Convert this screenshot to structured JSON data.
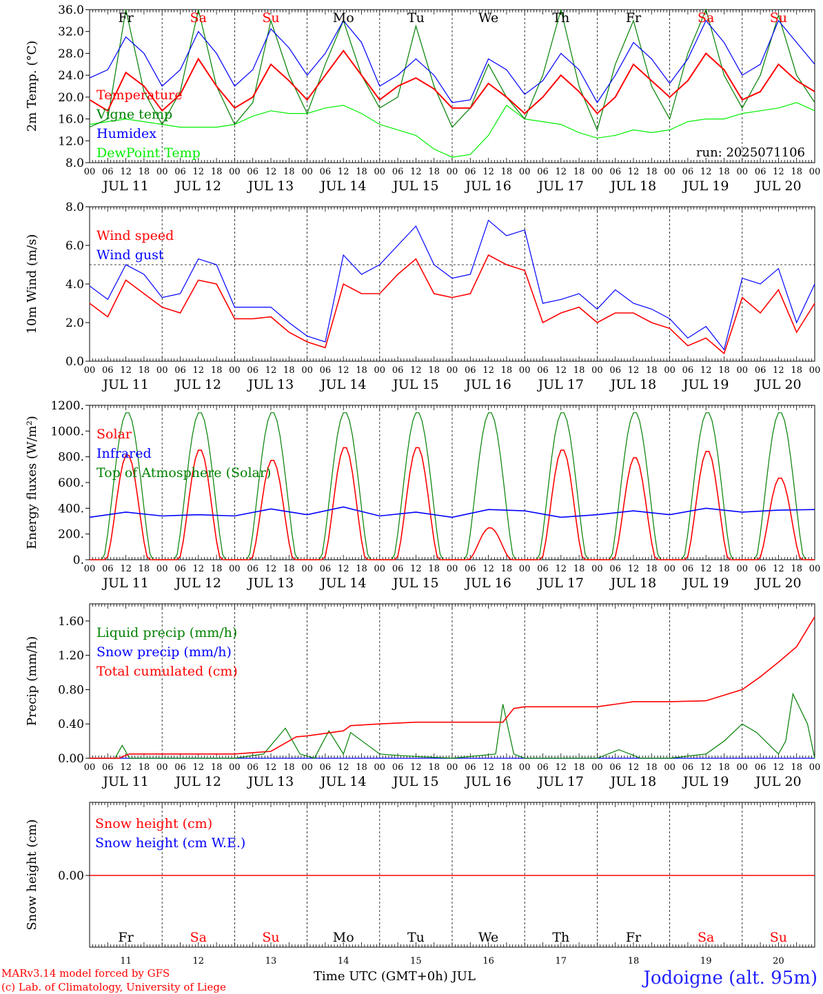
{
  "chart_data": [
    {
      "type": "line",
      "ylabel": "2m Temp. (°C)",
      "ylim": [
        8,
        36
      ],
      "yticks": [
        "36.0",
        "32.0",
        "28.0",
        "24.0",
        "20.0",
        "16.0",
        "12.0",
        "8.0"
      ],
      "annotation": "run: 2025071106",
      "legend": [
        {
          "label": "Temperature",
          "color": "#ff0000"
        },
        {
          "label": "Vigne temp",
          "color": "#008000"
        },
        {
          "label": "Humidex",
          "color": "#0000ff"
        },
        {
          "label": "DewPoint Temp",
          "color": "#00ee00"
        }
      ],
      "series": [
        {
          "name": "Temperature",
          "color": "#ff0000",
          "x": [
            0,
            0.25,
            0.5,
            0.75,
            1,
            1.25,
            1.5,
            1.75,
            2,
            2.25,
            2.5,
            2.75,
            3,
            3.25,
            3.5,
            3.75,
            4,
            4.25,
            4.5,
            4.75,
            5,
            5.25,
            5.5,
            5.75,
            6,
            6.25,
            6.5,
            6.75,
            7,
            7.25,
            7.5,
            7.75,
            8,
            8.25,
            8.5,
            8.75,
            9,
            9.25,
            9.5,
            9.75,
            10
          ],
          "values": [
            19.5,
            17.5,
            24.5,
            22,
            17.5,
            20.5,
            27,
            22,
            18,
            20,
            26,
            23,
            19.5,
            24,
            28.5,
            24,
            19.5,
            22,
            23.5,
            21.5,
            18,
            18,
            22.5,
            20,
            17,
            20,
            24,
            21,
            17,
            20,
            26,
            23,
            20,
            23,
            28,
            25,
            19.5,
            21,
            26,
            23,
            21
          ]
        },
        {
          "name": "Vigne temp",
          "color": "#008000",
          "x": [
            0,
            0.25,
            0.5,
            0.75,
            1,
            1.25,
            1.5,
            1.75,
            2,
            2.25,
            2.5,
            2.75,
            3,
            3.25,
            3.5,
            3.75,
            4,
            4.25,
            4.5,
            4.75,
            5,
            5.25,
            5.5,
            5.75,
            6,
            6.25,
            6.5,
            6.75,
            7,
            7.25,
            7.5,
            7.75,
            8,
            8.25,
            8.5,
            8.75,
            9,
            9.25,
            9.5,
            9.75,
            10
          ],
          "values": [
            14.5,
            16,
            36,
            21,
            15,
            21,
            36,
            22,
            15,
            19,
            34,
            24,
            17,
            26,
            34,
            24,
            18,
            20,
            33,
            22,
            14.5,
            18,
            26,
            20,
            16,
            24,
            36,
            22,
            14,
            26,
            34,
            22,
            16,
            28,
            36,
            24,
            18,
            24,
            35,
            24,
            19
          ]
        },
        {
          "name": "Humidex",
          "color": "#0000ff",
          "x": [
            0,
            0.25,
            0.5,
            0.75,
            1,
            1.25,
            1.5,
            1.75,
            2,
            2.25,
            2.5,
            2.75,
            3,
            3.25,
            3.5,
            3.75,
            4,
            4.25,
            4.5,
            4.75,
            5,
            5.25,
            5.5,
            5.75,
            6,
            6.25,
            6.5,
            6.75,
            7,
            7.25,
            7.5,
            7.75,
            8,
            8.25,
            8.5,
            8.75,
            9,
            9.25,
            9.5,
            9.75,
            10
          ],
          "values": [
            23.5,
            25,
            31,
            28,
            22,
            25,
            32,
            28,
            22,
            25,
            32.5,
            29,
            24,
            28,
            34,
            30,
            22,
            24,
            27,
            24,
            19,
            19.5,
            27,
            25,
            20.5,
            23,
            28,
            25,
            19,
            24,
            30,
            27,
            22.5,
            27,
            34,
            30,
            24,
            26,
            34,
            30,
            26
          ]
        },
        {
          "name": "DewPoint Temp",
          "color": "#00ee00",
          "x": [
            0,
            0.25,
            0.5,
            0.75,
            1,
            1.25,
            1.5,
            1.75,
            2,
            2.25,
            2.5,
            2.75,
            3,
            3.25,
            3.5,
            3.75,
            4,
            4.25,
            4.5,
            4.75,
            5,
            5.25,
            5.5,
            5.75,
            6,
            6.25,
            6.5,
            6.75,
            7,
            7.25,
            7.5,
            7.75,
            8,
            8.25,
            8.5,
            8.75,
            9,
            9.25,
            9.5,
            9.75,
            10
          ],
          "values": [
            15,
            15.5,
            16,
            15.5,
            15,
            14.5,
            14.5,
            14.5,
            15,
            16.5,
            17.5,
            17,
            17,
            18,
            18.5,
            17,
            15,
            14,
            13,
            10.5,
            9,
            9.5,
            13,
            18.5,
            16,
            15.5,
            15,
            13.5,
            12.5,
            13,
            14,
            13.5,
            14,
            15.5,
            16,
            16,
            17,
            17.5,
            18,
            19,
            17.5
          ]
        }
      ]
    },
    {
      "type": "line",
      "ylabel": "10m Wind (m/s)",
      "ylim": [
        0,
        8
      ],
      "yticks": [
        "8.0",
        "6.0",
        "4.0",
        "2.0",
        "0.0"
      ],
      "reference_line": 5,
      "legend": [
        {
          "label": "Wind speed",
          "color": "#ff0000"
        },
        {
          "label": "Wind gust",
          "color": "#0000ff"
        }
      ],
      "series": [
        {
          "name": "Wind speed",
          "color": "#ff0000",
          "x": [
            0,
            0.25,
            0.5,
            0.75,
            1,
            1.25,
            1.5,
            1.75,
            2,
            2.25,
            2.5,
            2.75,
            3,
            3.25,
            3.5,
            3.75,
            4,
            4.25,
            4.5,
            4.75,
            5,
            5.25,
            5.5,
            5.75,
            6,
            6.25,
            6.5,
            6.75,
            7,
            7.25,
            7.5,
            7.75,
            8,
            8.25,
            8.5,
            8.75,
            9,
            9.25,
            9.5,
            9.75,
            10
          ],
          "values": [
            3,
            2.3,
            4.2,
            3.5,
            2.8,
            2.5,
            4.2,
            4,
            2.2,
            2.2,
            2.3,
            1.5,
            1,
            0.7,
            4,
            3.5,
            3.5,
            4.5,
            5.3,
            3.5,
            3.3,
            3.5,
            5.5,
            5,
            4.7,
            2,
            2.5,
            2.8,
            2,
            2.5,
            2.5,
            2,
            1.7,
            0.8,
            1.2,
            0.4,
            3.3,
            2.5,
            3.7,
            1.5,
            3
          ]
        },
        {
          "name": "Wind gust",
          "color": "#0000ff",
          "x": [
            0,
            0.25,
            0.5,
            0.75,
            1,
            1.25,
            1.5,
            1.75,
            2,
            2.25,
            2.5,
            2.75,
            3,
            3.25,
            3.5,
            3.75,
            4,
            4.25,
            4.5,
            4.75,
            5,
            5.25,
            5.5,
            5.75,
            6,
            6.25,
            6.5,
            6.75,
            7,
            7.25,
            7.5,
            7.75,
            8,
            8.25,
            8.5,
            8.75,
            9,
            9.25,
            9.5,
            9.75,
            10
          ],
          "values": [
            3.9,
            3.2,
            5,
            4.5,
            3.3,
            3.5,
            5.3,
            5,
            2.8,
            2.8,
            2.8,
            2,
            1.3,
            1,
            5.5,
            4.5,
            5,
            6,
            7,
            5,
            4.3,
            4.5,
            7.3,
            6.5,
            6.8,
            3,
            3.2,
            3.5,
            2.7,
            3.7,
            3,
            2.7,
            2.2,
            1.2,
            1.8,
            0.6,
            4.3,
            4,
            4.8,
            2,
            4
          ]
        }
      ]
    },
    {
      "type": "line",
      "ylabel": "Energy fluxes (W/m²)",
      "ylim": [
        0,
        1200
      ],
      "yticks": [
        "1200.",
        "1000.",
        "800.",
        "600.",
        "400.",
        "200.",
        "0."
      ],
      "legend": [
        {
          "label": "Solar",
          "color": "#ff0000"
        },
        {
          "label": "Infrared",
          "color": "#0000ff"
        },
        {
          "label": "Top of Atmosphere (Solar)",
          "color": "#008000"
        }
      ],
      "toa_peak": 1150,
      "solar_peaks": [
        820,
        860,
        780,
        880,
        880,
        250,
        860,
        800,
        850,
        640
      ],
      "infrared": {
        "x": [
          0,
          0.5,
          1,
          1.5,
          2,
          2.5,
          3,
          3.5,
          4,
          4.5,
          5,
          5.5,
          6,
          6.5,
          7,
          7.5,
          8,
          8.5,
          9,
          9.5,
          10
        ],
        "values": [
          330,
          370,
          340,
          350,
          340,
          395,
          350,
          410,
          340,
          370,
          330,
          390,
          380,
          330,
          350,
          380,
          350,
          400,
          370,
          385,
          390
        ]
      }
    },
    {
      "type": "line",
      "ylabel": "Precip (mm/h)",
      "ylim": [
        0,
        1.8
      ],
      "yticks": [
        "1.60",
        "1.20",
        "0.80",
        "0.40",
        "0.00"
      ],
      "legend": [
        {
          "label": "Liquid precip (mm/h)",
          "color": "#008000"
        },
        {
          "label": "Snow precip (mm/h)",
          "color": "#0000ff"
        },
        {
          "label": "Total cumulated (cm)",
          "color": "#ff0000"
        }
      ],
      "series": [
        {
          "name": "Total cumulated (cm)",
          "color": "#ff0000",
          "x": [
            0,
            0.4,
            0.55,
            1,
            2,
            2.5,
            2.85,
            3,
            3.5,
            3.6,
            4,
            4.5,
            5,
            5.7,
            5.85,
            6,
            7,
            7.5,
            8,
            8.5,
            9,
            9.25,
            9.5,
            9.75,
            10
          ],
          "values": [
            0,
            0,
            0.05,
            0.05,
            0.05,
            0.08,
            0.25,
            0.26,
            0.32,
            0.38,
            0.4,
            0.42,
            0.42,
            0.42,
            0.58,
            0.6,
            0.6,
            0.66,
            0.66,
            0.67,
            0.8,
            0.95,
            1.12,
            1.3,
            1.65
          ]
        },
        {
          "name": "Liquid precip (mm/h)",
          "color": "#008000",
          "x": [
            0,
            0.35,
            0.45,
            0.55,
            1,
            2,
            2.4,
            2.7,
            2.9,
            3.1,
            3.3,
            3.5,
            3.6,
            4,
            4.3,
            5,
            5.6,
            5.7,
            5.85,
            6,
            7,
            7.3,
            7.6,
            8,
            8.5,
            8.75,
            9,
            9.2,
            9.5,
            9.6,
            9.7,
            9.9,
            10
          ],
          "values": [
            0,
            0,
            0.15,
            0,
            0,
            0,
            0.05,
            0.35,
            0.05,
            0,
            0.32,
            0.05,
            0.3,
            0.05,
            0.03,
            0,
            0.05,
            0.63,
            0.05,
            0,
            0,
            0.1,
            0,
            0,
            0.05,
            0.2,
            0.4,
            0.3,
            0.05,
            0.2,
            0.75,
            0.4,
            0
          ]
        },
        {
          "name": "Snow precip (mm/h)",
          "color": "#0000ff",
          "x": [
            0,
            10
          ],
          "values": [
            0,
            0
          ]
        }
      ]
    },
    {
      "type": "line",
      "ylabel": "Snow height (cm)",
      "yticks": [
        "0.00"
      ],
      "legend": [
        {
          "label": "Snow height (cm)",
          "color": "#ff0000"
        },
        {
          "label": "Snow height (cm W.E.)",
          "color": "#0000ff"
        }
      ],
      "series": [
        {
          "name": "Snow height (cm)",
          "color": "#ff0000",
          "x": [
            0,
            10
          ],
          "values": [
            0,
            0
          ]
        }
      ]
    }
  ],
  "x_axis": {
    "hour_labels": [
      "00",
      "06",
      "12",
      "18"
    ],
    "end_label": "00",
    "date_labels": [
      "JUL 11",
      "JUL 12",
      "JUL 13",
      "JUL 14",
      "JUL 15",
      "JUL 16",
      "JUL 17",
      "JUL 18",
      "JUL 19",
      "JUL 20"
    ],
    "weekdays": [
      {
        "label": "Fr",
        "weekend": false
      },
      {
        "label": "Sa",
        "weekend": true
      },
      {
        "label": "Su",
        "weekend": true
      },
      {
        "label": "Mo",
        "weekend": false
      },
      {
        "label": "Tu",
        "weekend": false
      },
      {
        "label": "We",
        "weekend": false
      },
      {
        "label": "Th",
        "weekend": false
      },
      {
        "label": "Fr",
        "weekend": false
      },
      {
        "label": "Sa",
        "weekend": true
      },
      {
        "label": "Su",
        "weekend": true
      }
    ],
    "day_numbers": [
      "11",
      "12",
      "13",
      "14",
      "15",
      "16",
      "17",
      "18",
      "19",
      "20"
    ],
    "title": "Time UTC (GMT+0h) JUL"
  },
  "footer": {
    "model_line": "MARv3.14 model forced by GFS",
    "credit_line": "(c) Lab. of Climatology, University of Liege",
    "station": "Jodoigne (alt. 95m)"
  },
  "colors": {
    "weekend": "#ff0000",
    "weekday": "#000000",
    "station": "#2020ff"
  }
}
